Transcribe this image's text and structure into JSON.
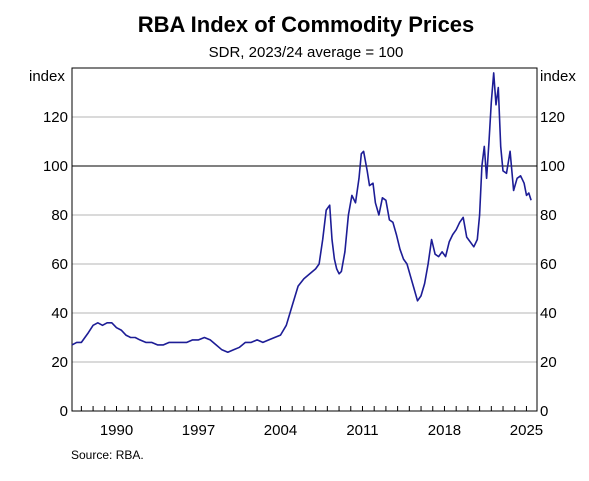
{
  "chart_data": {
    "type": "line",
    "title": "RBA Index of Commodity Prices",
    "subtitle": "SDR, 2023/24 average = 100",
    "ylabel": "index",
    "source": "Source:   RBA.",
    "ylim": [
      0,
      140
    ],
    "yticks": [
      0,
      20,
      40,
      60,
      80,
      100,
      120
    ],
    "xlim": [
      1986.2,
      2025.9
    ],
    "xticks": [
      1990,
      1997,
      2004,
      2011,
      2018,
      2025
    ],
    "reference_line": 100,
    "grid": true,
    "series": [
      {
        "color": "#1d1d96",
        "x": [
          1986.2,
          1986.6,
          1987.0,
          1987.3,
          1987.6,
          1988.0,
          1988.4,
          1988.8,
          1989.2,
          1989.6,
          1990.0,
          1990.4,
          1990.8,
          1991.2,
          1991.6,
          1992.0,
          1992.5,
          1993.0,
          1993.5,
          1994.0,
          1994.5,
          1995.0,
          1995.5,
          1996.0,
          1996.5,
          1997.0,
          1997.5,
          1998.0,
          1998.5,
          1999.0,
          1999.5,
          2000.0,
          2000.5,
          2001.0,
          2001.5,
          2002.0,
          2002.5,
          2003.0,
          2003.5,
          2004.0,
          2004.5,
          2005.0,
          2005.5,
          2006.0,
          2006.5,
          2007.0,
          2007.3,
          2007.6,
          2007.9,
          2008.2,
          2008.4,
          2008.6,
          2008.8,
          2009.0,
          2009.2,
          2009.5,
          2009.8,
          2010.1,
          2010.4,
          2010.7,
          2010.9,
          2011.1,
          2011.4,
          2011.6,
          2011.9,
          2012.1,
          2012.4,
          2012.7,
          2013.0,
          2013.3,
          2013.6,
          2013.9,
          2014.2,
          2014.5,
          2014.8,
          2015.1,
          2015.4,
          2015.7,
          2016.0,
          2016.3,
          2016.6,
          2016.9,
          2017.2,
          2017.5,
          2017.8,
          2018.1,
          2018.4,
          2018.7,
          2019.0,
          2019.3,
          2019.6,
          2019.9,
          2020.2,
          2020.5,
          2020.8,
          2021.0,
          2021.2,
          2021.4,
          2021.6,
          2021.8,
          2022.0,
          2022.2,
          2022.4,
          2022.6,
          2022.8,
          2023.0,
          2023.3,
          2023.6,
          2023.9,
          2024.2,
          2024.5,
          2024.8,
          2025.0,
          2025.2,
          2025.4
        ],
        "values": [
          27,
          28,
          28,
          30,
          32,
          35,
          36,
          35,
          36,
          36,
          34,
          33,
          31,
          30,
          30,
          29,
          28,
          28,
          27,
          27,
          28,
          28,
          28,
          28,
          29,
          29,
          30,
          29,
          27,
          25,
          24,
          25,
          26,
          28,
          28,
          29,
          28,
          29,
          30,
          31,
          35,
          43,
          51,
          54,
          56,
          58,
          60,
          70,
          82,
          84,
          70,
          62,
          58,
          56,
          57,
          65,
          80,
          88,
          85,
          95,
          105,
          106,
          98,
          92,
          93,
          85,
          80,
          87,
          86,
          78,
          77,
          72,
          66,
          62,
          60,
          55,
          50,
          45,
          47,
          52,
          60,
          70,
          64,
          63,
          65,
          63,
          69,
          72,
          74,
          77,
          79,
          71,
          69,
          67,
          70,
          80,
          100,
          108,
          95,
          110,
          126,
          138,
          125,
          132,
          108,
          98,
          97,
          106,
          90,
          95,
          96,
          93,
          88,
          89,
          86
        ]
      }
    ]
  }
}
